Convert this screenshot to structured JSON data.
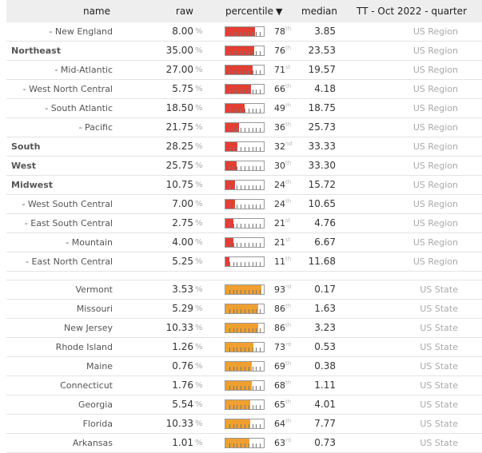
{
  "header": {
    "name": "name",
    "raw": "raw",
    "percentile": "percentile",
    "sort_indicator": "▼",
    "median": "median",
    "dataset": "TT - Oct 2022 - quarter"
  },
  "colors": {
    "region_bar": "#e23f33",
    "state_bar": "#f0a030"
  },
  "regions": [
    {
      "name": "- New England",
      "bold": false,
      "raw": "8.00",
      "pct_sign": "%",
      "percentile": 78,
      "suffix": "th",
      "median": "3.85",
      "scope": "US Region"
    },
    {
      "name": "Northeast",
      "bold": true,
      "raw": "35.00",
      "pct_sign": "%",
      "percentile": 76,
      "suffix": "th",
      "median": "23.53",
      "scope": "US Region"
    },
    {
      "name": "- Mid-Atlantic",
      "bold": false,
      "raw": "27.00",
      "pct_sign": "%",
      "percentile": 71,
      "suffix": "st",
      "median": "19.57",
      "scope": "US Region"
    },
    {
      "name": "- West North Central",
      "bold": false,
      "raw": "5.75",
      "pct_sign": "%",
      "percentile": 66,
      "suffix": "th",
      "median": "4.18",
      "scope": "US Region"
    },
    {
      "name": "- South Atlantic",
      "bold": false,
      "raw": "18.50",
      "pct_sign": "%",
      "percentile": 49,
      "suffix": "th",
      "median": "18.75",
      "scope": "US Region"
    },
    {
      "name": "- Pacific",
      "bold": false,
      "raw": "21.75",
      "pct_sign": "%",
      "percentile": 36,
      "suffix": "th",
      "median": "25.73",
      "scope": "US Region"
    },
    {
      "name": "South",
      "bold": true,
      "raw": "28.25",
      "pct_sign": "%",
      "percentile": 32,
      "suffix": "nd",
      "median": "33.33",
      "scope": "US Region"
    },
    {
      "name": "West",
      "bold": true,
      "raw": "25.75",
      "pct_sign": "%",
      "percentile": 30,
      "suffix": "th",
      "median": "33.30",
      "scope": "US Region"
    },
    {
      "name": "Midwest",
      "bold": true,
      "raw": "10.75",
      "pct_sign": "%",
      "percentile": 24,
      "suffix": "th",
      "median": "15.72",
      "scope": "US Region"
    },
    {
      "name": "- West South Central",
      "bold": false,
      "raw": "7.00",
      "pct_sign": "%",
      "percentile": 24,
      "suffix": "th",
      "median": "10.65",
      "scope": "US Region"
    },
    {
      "name": "- East South Central",
      "bold": false,
      "raw": "2.75",
      "pct_sign": "%",
      "percentile": 21,
      "suffix": "st",
      "median": "4.76",
      "scope": "US Region"
    },
    {
      "name": "- Mountain",
      "bold": false,
      "raw": "4.00",
      "pct_sign": "%",
      "percentile": 21,
      "suffix": "st",
      "median": "6.67",
      "scope": "US Region"
    },
    {
      "name": "- East North Central",
      "bold": false,
      "raw": "5.25",
      "pct_sign": "%",
      "percentile": 11,
      "suffix": "th",
      "median": "11.68",
      "scope": "US Region"
    }
  ],
  "states": [
    {
      "name": "Vermont",
      "bold": false,
      "raw": "3.53",
      "pct_sign": "%",
      "percentile": 93,
      "suffix": "rd",
      "median": "0.17",
      "scope": "US State"
    },
    {
      "name": "Missouri",
      "bold": false,
      "raw": "5.29",
      "pct_sign": "%",
      "percentile": 86,
      "suffix": "th",
      "median": "1.63",
      "scope": "US State"
    },
    {
      "name": "New Jersey",
      "bold": false,
      "raw": "10.33",
      "pct_sign": "%",
      "percentile": 86,
      "suffix": "th",
      "median": "3.23",
      "scope": "US State"
    },
    {
      "name": "Rhode Island",
      "bold": false,
      "raw": "1.26",
      "pct_sign": "%",
      "percentile": 73,
      "suffix": "rd",
      "median": "0.53",
      "scope": "US State"
    },
    {
      "name": "Maine",
      "bold": false,
      "raw": "0.76",
      "pct_sign": "%",
      "percentile": 69,
      "suffix": "th",
      "median": "0.38",
      "scope": "US State"
    },
    {
      "name": "Connecticut",
      "bold": false,
      "raw": "1.76",
      "pct_sign": "%",
      "percentile": 68,
      "suffix": "th",
      "median": "1.11",
      "scope": "US State"
    },
    {
      "name": "Georgia",
      "bold": false,
      "raw": "5.54",
      "pct_sign": "%",
      "percentile": 65,
      "suffix": "th",
      "median": "4.01",
      "scope": "US State"
    },
    {
      "name": "Florida",
      "bold": false,
      "raw": "10.33",
      "pct_sign": "%",
      "percentile": 64,
      "suffix": "th",
      "median": "7.77",
      "scope": "US State"
    },
    {
      "name": "Arkansas",
      "bold": false,
      "raw": "1.01",
      "pct_sign": "%",
      "percentile": 63,
      "suffix": "rd",
      "median": "0.73",
      "scope": "US State"
    }
  ]
}
